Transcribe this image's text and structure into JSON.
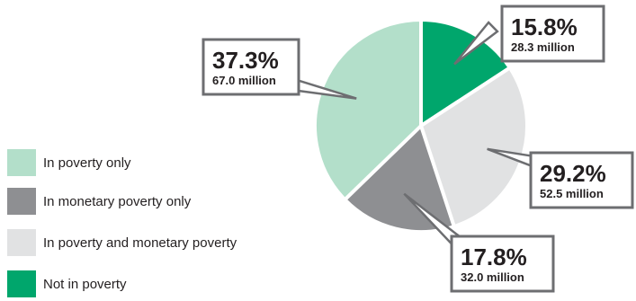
{
  "chart_data": {
    "type": "pie",
    "slices": [
      {
        "name": "Not in poverty",
        "percent": 15.8,
        "percent_label": "15.8%",
        "value_label": "28.3 million",
        "color": "#00a66c"
      },
      {
        "name": "In poverty and monetary poverty",
        "percent": 29.2,
        "percent_label": "29.2%",
        "value_label": "52.5 million",
        "color": "#e1e2e3"
      },
      {
        "name": "In monetary poverty only",
        "percent": 17.8,
        "percent_label": "17.8%",
        "value_label": "32.0 million",
        "color": "#8e8f92"
      },
      {
        "name": "In poverty only",
        "percent": 37.3,
        "percent_label": "37.3%",
        "value_label": "67.0 million",
        "color": "#b3dfca"
      }
    ],
    "legend": [
      {
        "label": "In poverty only",
        "color": "#b3dfca"
      },
      {
        "label": "In monetary poverty only",
        "color": "#8e8f92"
      },
      {
        "label": "In poverty and monetary poverty",
        "color": "#e1e2e3"
      },
      {
        "label": "Not in poverty",
        "color": "#00a66c"
      }
    ],
    "legend_placement": "left"
  }
}
